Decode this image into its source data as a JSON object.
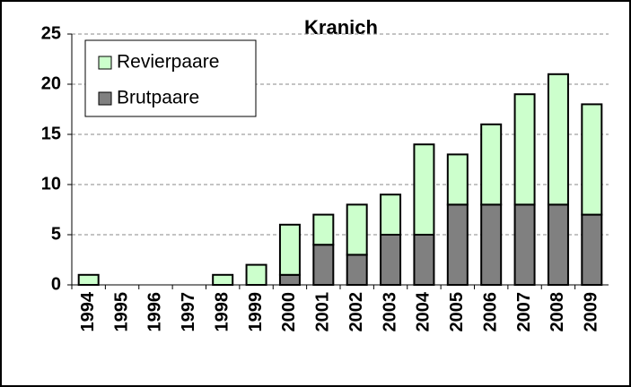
{
  "chart_data": {
    "type": "stacked_bar",
    "title": "Kranich",
    "categories": [
      "1994",
      "1995",
      "1996",
      "1997",
      "1998",
      "1999",
      "2000",
      "2001",
      "2002",
      "2003",
      "2004",
      "2005",
      "2006",
      "2007",
      "2008",
      "2009"
    ],
    "series": [
      {
        "name": "Brutpaare",
        "color": "#808080",
        "values": [
          0,
          0,
          0,
          0,
          0,
          0,
          1,
          4,
          3,
          5,
          5,
          8,
          8,
          8,
          8,
          7
        ]
      },
      {
        "name": "Revierpaare",
        "color": "#ccffcc",
        "values": [
          1,
          0,
          0,
          0,
          1,
          2,
          5,
          3,
          5,
          4,
          9,
          5,
          8,
          11,
          13,
          11
        ]
      }
    ],
    "ylim": [
      0,
      25
    ],
    "yticks": [
      0,
      5,
      10,
      15,
      20,
      25
    ],
    "grid": true,
    "legend": "upper left"
  }
}
